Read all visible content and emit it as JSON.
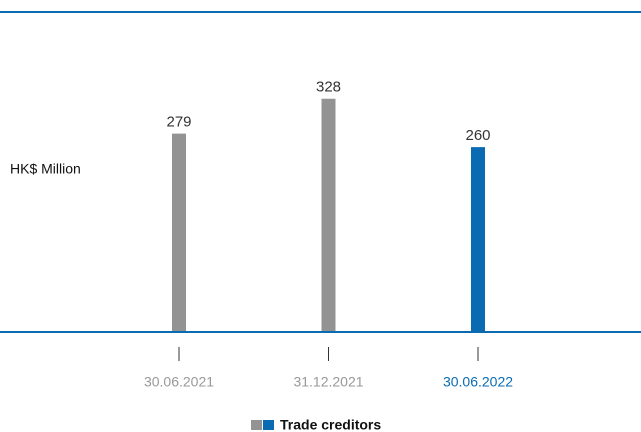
{
  "chart_data": {
    "type": "bar",
    "y_label": "HK$ Million",
    "categories": [
      "30.06.2021",
      "31.12.2021",
      "30.06.2022"
    ],
    "values": [
      279,
      328,
      260
    ],
    "colors": [
      "#939393",
      "#939393",
      "#0a6bb3"
    ],
    "ylim": [
      0,
      450
    ],
    "legend": {
      "name": "Trade creditors",
      "colors": [
        "#939393",
        "#0a6bb3"
      ],
      "position": "bottom"
    }
  }
}
